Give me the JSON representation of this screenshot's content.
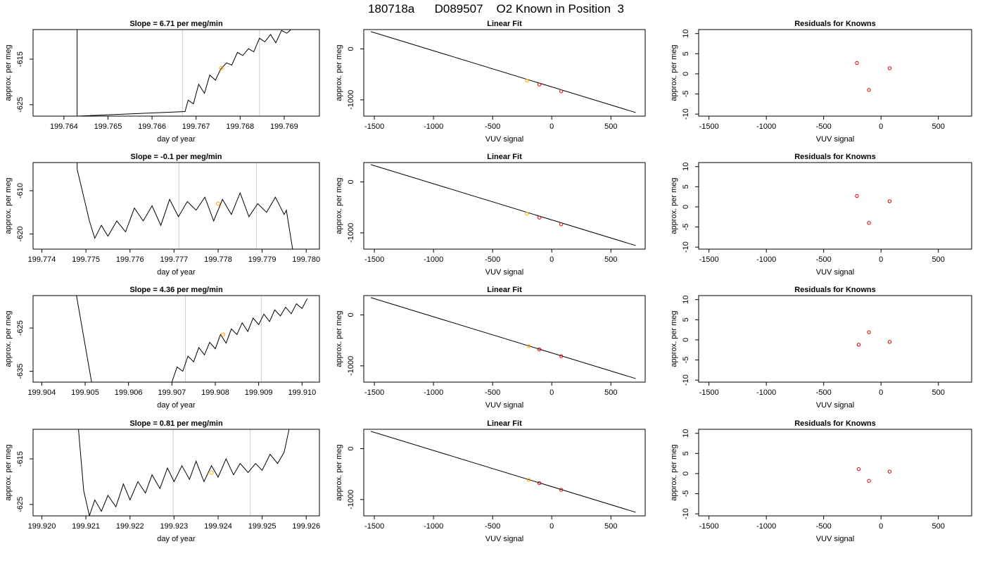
{
  "figure_title": "180718a      D089507    O2 Known in Position  3",
  "chart_data": [
    {
      "type": "line",
      "title": "Slope =  6.71  per meg/min",
      "xlabel": "day of year",
      "ylabel": "approx. per meg",
      "xlim": [
        199.7633,
        199.7698
      ],
      "ylim": [
        -627.5,
        -608.5
      ],
      "xticks": [
        "199.764",
        "199.765",
        "199.766",
        "199.767",
        "199.768",
        "199.769"
      ],
      "yticks": [
        "-615",
        "-625"
      ],
      "grid": false,
      "vlines": [
        199.76669,
        199.76844
      ],
      "marker": [
        199.76757,
        -617
      ],
      "trace_start": [
        199.7643,
        -605
      ],
      "trace_end": [
        199.7693,
        -608
      ],
      "series": [
        {
          "x": [
            199.7643,
            199.7643,
            199.76675,
            199.76682,
            199.76694,
            199.76706,
            199.76719,
            199.76731,
            199.76744,
            199.76756,
            199.76769,
            199.76781,
            199.76794,
            199.76806,
            199.76819,
            199.76831,
            199.76844,
            199.76856,
            199.76869,
            199.76881,
            199.76894,
            199.76906,
            199.76919,
            199.76931
          ],
          "y": [
            -605,
            -627.5,
            -626.5,
            -624,
            -624.8,
            -620.5,
            -622.5,
            -618.5,
            -619.6,
            -617.2,
            -615.8,
            -616.3,
            -613.5,
            -614.2,
            -612.7,
            -613.4,
            -610.4,
            -611.2,
            -609.6,
            -611.4,
            -608.7,
            -609.3,
            -608.2,
            -608.5
          ]
        }
      ]
    },
    {
      "type": "line",
      "title": "Linear Fit",
      "xlabel": "VUV signal",
      "ylabel": "approx. per meg",
      "xlim": [
        -1590,
        790
      ],
      "ylim": [
        -1320,
        380
      ],
      "xticks": [
        "-1500",
        "-1000",
        "-500",
        "0",
        "500"
      ],
      "yticks": [
        "0",
        "-1000"
      ],
      "line": {
        "x": [
          -1530,
          710
        ],
        "y": [
          340,
          -1250
        ]
      },
      "points": {
        "x": [
          -210,
          -105,
          80
        ],
        "y": [
          -623,
          -700,
          -832
        ]
      },
      "highlight_index": 0
    },
    {
      "type": "scatter",
      "title": "Residuals for Knowns",
      "xlabel": "VUV signal",
      "ylabel": "approx. per meg",
      "xlim": [
        -1590,
        790
      ],
      "ylim": [
        -10.5,
        11
      ],
      "xticks": [
        "-1500",
        "-1000",
        "-500",
        "0",
        "500"
      ],
      "yticks": [
        "10",
        "5",
        "0",
        "-5",
        "-10"
      ],
      "points": {
        "x": [
          -210,
          -105,
          75
        ],
        "y": [
          2.7,
          -4,
          1.4
        ]
      }
    },
    {
      "type": "line",
      "title": "Slope =  -0.1  per meg/min",
      "xlabel": "day of year",
      "ylabel": "approx. per meg",
      "xlim": [
        199.7738,
        199.7803
      ],
      "ylim": [
        -623.5,
        -603.5
      ],
      "xticks": [
        "199.774",
        "199.775",
        "199.776",
        "199.777",
        "199.778",
        "199.779",
        "199.780"
      ],
      "yticks": [
        "-610",
        "-620"
      ],
      "grid": false,
      "vlines": [
        199.77711,
        199.77887
      ],
      "marker": [
        199.778,
        -613
      ],
      "trace_start": [
        199.7748,
        -605
      ],
      "trace_end": [
        199.7797,
        -624
      ],
      "series": [
        {
          "x": [
            199.7748,
            199.77508,
            199.7752,
            199.77535,
            199.7755,
            199.7757,
            199.7759,
            199.7761,
            199.7763,
            199.7765,
            199.7767,
            199.7769,
            199.7771,
            199.7773,
            199.7775,
            199.7777,
            199.7779,
            199.7781,
            199.7783,
            199.7785,
            199.7787,
            199.7789,
            199.7791,
            199.7793,
            199.7795,
            199.77955,
            199.7797
          ],
          "y": [
            -605,
            -617,
            -621,
            -618,
            -620.5,
            -617,
            -619.5,
            -614,
            -617,
            -613.5,
            -618,
            -612,
            -616,
            -612.5,
            -614.5,
            -611.5,
            -617,
            -612,
            -615.5,
            -610.5,
            -616,
            -613,
            -615,
            -611.5,
            -615.5,
            -614.5,
            -624
          ]
        }
      ]
    },
    {
      "type": "line",
      "title": "Linear Fit",
      "xlabel": "VUV signal",
      "ylabel": "approx. per meg",
      "xlim": [
        -1590,
        790
      ],
      "ylim": [
        -1320,
        380
      ],
      "xticks": [
        "-1500",
        "-1000",
        "-500",
        "0",
        "500"
      ],
      "yticks": [
        "0",
        "-1000"
      ],
      "line": {
        "x": [
          -1530,
          710
        ],
        "y": [
          340,
          -1250
        ]
      },
      "points": {
        "x": [
          -210,
          -105,
          80
        ],
        "y": [
          -623,
          -700,
          -832
        ]
      },
      "highlight_index": 0
    },
    {
      "type": "scatter",
      "title": "Residuals for Knowns",
      "xlabel": "VUV signal",
      "ylabel": "approx. per meg",
      "xlim": [
        -1590,
        790
      ],
      "ylim": [
        -10.5,
        11
      ],
      "xticks": [
        "-1500",
        "-1000",
        "-500",
        "0",
        "500"
      ],
      "yticks": [
        "10",
        "5",
        "0",
        "-5",
        "-10"
      ],
      "points": {
        "x": [
          -210,
          -105,
          75
        ],
        "y": [
          2.7,
          -4,
          1.4
        ]
      }
    },
    {
      "type": "line",
      "title": "Slope =  4.36  per meg/min",
      "xlabel": "day of year",
      "ylabel": "approx. per meg",
      "xlim": [
        199.9038,
        199.9104
      ],
      "ylim": [
        -637.5,
        -617.5
      ],
      "xticks": [
        "199.904",
        "199.905",
        "199.906",
        "199.907",
        "199.908",
        "199.909",
        "199.910"
      ],
      "yticks": [
        "-625",
        "-635"
      ],
      "grid": false,
      "vlines": [
        199.90731,
        199.90906
      ],
      "marker": [
        199.90818,
        -626.5
      ],
      "trace_start": [
        199.9048,
        -617.5
      ],
      "trace_end": [
        199.9101,
        -619
      ],
      "series": [
        {
          "x": [
            199.9048,
            199.90515,
            199.90515,
            199.907,
            199.90712,
            199.90725,
            199.90737,
            199.9075,
            199.90762,
            199.90775,
            199.90787,
            199.908,
            199.90812,
            199.90825,
            199.90837,
            199.9085,
            199.90862,
            199.90875,
            199.90887,
            199.909,
            199.90912,
            199.90925,
            199.90937,
            199.9095,
            199.90962,
            199.90975,
            199.90987,
            199.91,
            199.91012
          ],
          "y": [
            -617.5,
            -637.5,
            -637.5,
            -637.5,
            -634,
            -635,
            -631.5,
            -632.8,
            -629.5,
            -631.2,
            -628.3,
            -629.8,
            -626.5,
            -628.5,
            -625.2,
            -626.5,
            -623.8,
            -625.8,
            -622.7,
            -624.2,
            -621.8,
            -623.5,
            -620.8,
            -622.2,
            -620.2,
            -621.7,
            -619.4,
            -620.5,
            -618.2
          ]
        }
      ]
    },
    {
      "type": "line",
      "title": "Linear Fit",
      "xlabel": "VUV signal",
      "ylabel": "approx. per meg",
      "xlim": [
        -1590,
        790
      ],
      "ylim": [
        -1320,
        380
      ],
      "xticks": [
        "-1500",
        "-1000",
        "-500",
        "0",
        "500"
      ],
      "yticks": [
        "0",
        "-1000"
      ],
      "line": {
        "x": [
          -1530,
          710
        ],
        "y": [
          340,
          -1250
        ]
      },
      "points": {
        "x": [
          -195,
          -105,
          80
        ],
        "y": [
          -613,
          -677,
          -810
        ]
      },
      "highlight_index": 0
    },
    {
      "type": "scatter",
      "title": "Residuals for Knowns",
      "xlabel": "VUV signal",
      "ylabel": "approx. per meg",
      "xlim": [
        -1590,
        790
      ],
      "ylim": [
        -10.5,
        11
      ],
      "xticks": [
        "-1500",
        "-1000",
        "-500",
        "0",
        "500"
      ],
      "yticks": [
        "10",
        "5",
        "0",
        "-5",
        "-10"
      ],
      "points": {
        "x": [
          -195,
          -105,
          75
        ],
        "y": [
          -1.2,
          1.9,
          -0.5
        ]
      }
    },
    {
      "type": "line",
      "title": "Slope =  0.81  per meg/min",
      "xlabel": "day of year",
      "ylabel": "approx. per meg",
      "xlim": [
        199.9198,
        199.9263
      ],
      "ylim": [
        -627.5,
        -608.5
      ],
      "xticks": [
        "199.920",
        "199.921",
        "199.922",
        "199.923",
        "199.924",
        "199.925",
        "199.926"
      ],
      "yticks": [
        "-615",
        "-625"
      ],
      "grid": false,
      "vlines": [
        199.92298,
        199.92473
      ],
      "marker": [
        199.92385,
        -618
      ],
      "trace_start": [
        199.9208,
        -605
      ],
      "trace_end": [
        199.9257,
        -604
      ],
      "series": [
        {
          "x": [
            199.9208,
            199.92095,
            199.92108,
            199.9212,
            199.92135,
            199.9215,
            199.92168,
            199.92185,
            199.922,
            199.92218,
            199.92235,
            199.9225,
            199.92268,
            199.92285,
            199.923,
            199.92318,
            199.92335,
            199.9235,
            199.92368,
            199.92385,
            199.924,
            199.92418,
            199.92435,
            199.9245,
            199.92468,
            199.92485,
            199.925,
            199.92518,
            199.92535,
            199.9255,
            199.9256,
            199.9257
          ],
          "y": [
            -605,
            -622,
            -627.5,
            -624,
            -626.5,
            -623,
            -625.5,
            -620.5,
            -624,
            -620,
            -622.5,
            -618.5,
            -621.5,
            -617,
            -620,
            -616.5,
            -619.5,
            -615.5,
            -620,
            -616.5,
            -619,
            -615,
            -618.5,
            -616,
            -618,
            -616,
            -617.5,
            -614,
            -616,
            -613.5,
            -609,
            -604
          ]
        }
      ]
    },
    {
      "type": "line",
      "title": "Linear Fit",
      "xlabel": "VUV signal",
      "ylabel": "approx. per meg",
      "xlim": [
        -1590,
        790
      ],
      "ylim": [
        -1320,
        380
      ],
      "xticks": [
        "-1500",
        "-1000",
        "-500",
        "0",
        "500"
      ],
      "yticks": [
        "0",
        "-1000"
      ],
      "line": {
        "x": [
          -1530,
          710
        ],
        "y": [
          340,
          -1250
        ]
      },
      "points": {
        "x": [
          -195,
          -105,
          80
        ],
        "y": [
          -613,
          -677,
          -810
        ]
      },
      "highlight_index": 0
    },
    {
      "type": "scatter",
      "title": "Residuals for Knowns",
      "xlabel": "VUV signal",
      "ylabel": "approx. per meg",
      "xlim": [
        -1590,
        790
      ],
      "ylim": [
        -10.5,
        11
      ],
      "xticks": [
        "-1500",
        "-1000",
        "-500",
        "0",
        "500"
      ],
      "yticks": [
        "10",
        "5",
        "0",
        "-5",
        "-10"
      ],
      "points": {
        "x": [
          -195,
          -105,
          75
        ],
        "y": [
          1.1,
          -1.8,
          0.5
        ]
      }
    }
  ]
}
